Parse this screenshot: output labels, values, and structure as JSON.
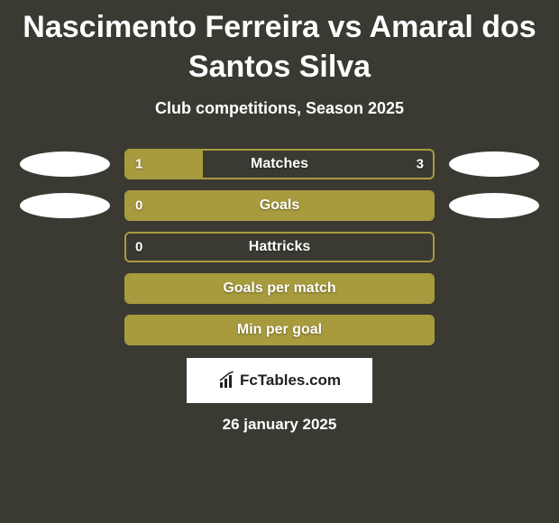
{
  "title": "Nascimento Ferreira vs Amaral dos Santos Silva",
  "subtitle": "Club competitions, Season 2025",
  "colors": {
    "background": "#3a3a32",
    "bar_fill": "#a89b3e",
    "bar_border": "#a89b3e",
    "text": "#ffffff",
    "oval": "#ffffff",
    "logo_bg": "#ffffff",
    "logo_text": "#222222"
  },
  "stats": [
    {
      "label": "Matches",
      "left_val": "1",
      "right_val": "3",
      "fill_pct": 25,
      "has_ovals": true,
      "oval_indent": 0
    },
    {
      "label": "Goals",
      "left_val": "0",
      "right_val": "",
      "fill_pct": 100,
      "has_ovals": true,
      "oval_indent": 10
    },
    {
      "label": "Hattricks",
      "left_val": "0",
      "right_val": "",
      "fill_pct": 0,
      "has_ovals": false,
      "oval_indent": 0
    },
    {
      "label": "Goals per match",
      "left_val": "",
      "right_val": "",
      "fill_pct": 100,
      "has_ovals": false,
      "oval_indent": 0
    },
    {
      "label": "Min per goal",
      "left_val": "",
      "right_val": "",
      "fill_pct": 100,
      "has_ovals": false,
      "oval_indent": 0
    }
  ],
  "logo": {
    "text": "FcTables.com"
  },
  "date": "26 january 2025"
}
